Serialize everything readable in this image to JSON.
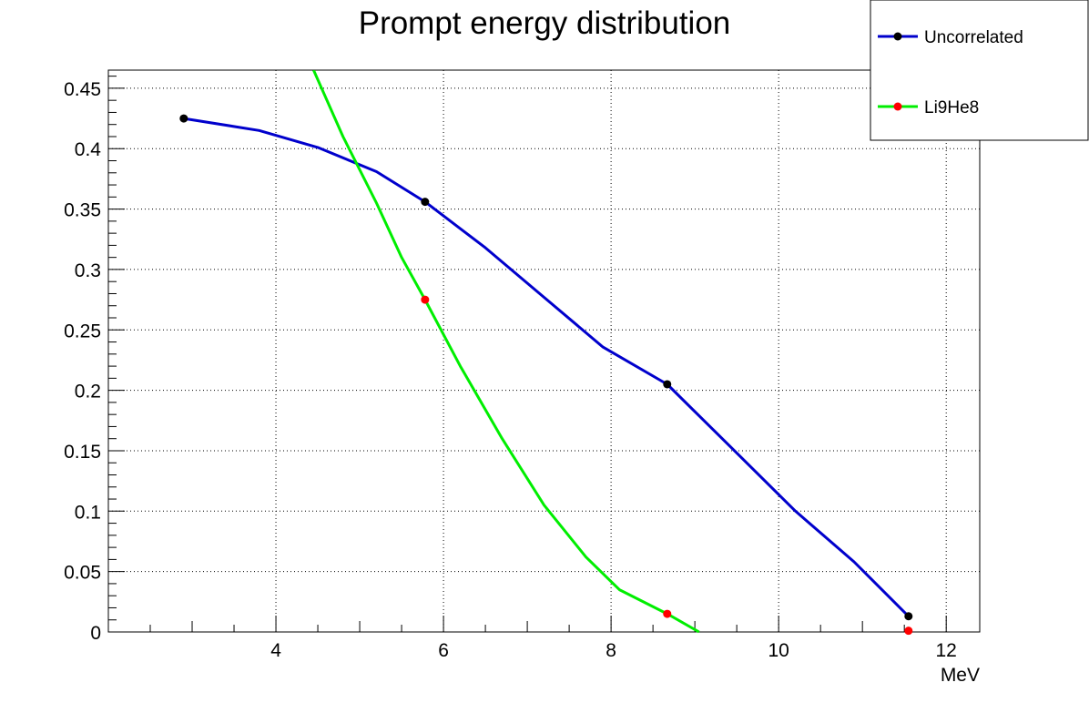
{
  "chart_data": {
    "type": "line",
    "title": "Prompt energy distribution",
    "xlabel": "MeV",
    "ylabel": "",
    "xlim": [
      2.0,
      12.4
    ],
    "ylim": [
      0,
      0.465
    ],
    "x_major_ticks": [
      4,
      6,
      8,
      10,
      12
    ],
    "x_tick_labels": [
      "4",
      "6",
      "8",
      "10",
      "12"
    ],
    "y_major_ticks": [
      0,
      0.05,
      0.1,
      0.15,
      0.2,
      0.25,
      0.3,
      0.35,
      0.4,
      0.45
    ],
    "y_tick_labels": [
      "0",
      "0.05",
      "0.1",
      "0.15",
      "0.2",
      "0.25",
      "0.3",
      "0.35",
      "0.4",
      "0.45"
    ],
    "grid": true,
    "legend_position": "top-right",
    "series": [
      {
        "name": "Uncorrelated",
        "color": "#0000cc",
        "marker_color": "#000000",
        "points": [
          [
            2.9,
            0.425
          ],
          [
            5.78,
            0.356
          ],
          [
            8.67,
            0.205
          ],
          [
            11.55,
            0.013
          ]
        ],
        "curve": [
          [
            2.9,
            0.425
          ],
          [
            3.8,
            0.415
          ],
          [
            4.5,
            0.401
          ],
          [
            5.2,
            0.381
          ],
          [
            5.78,
            0.356
          ],
          [
            6.5,
            0.318
          ],
          [
            7.2,
            0.277
          ],
          [
            7.9,
            0.236
          ],
          [
            8.67,
            0.205
          ],
          [
            9.4,
            0.155
          ],
          [
            10.2,
            0.1
          ],
          [
            10.9,
            0.058
          ],
          [
            11.55,
            0.013
          ]
        ]
      },
      {
        "name": "Li9He8",
        "color": "#00ee00",
        "marker_color": "#ff0000",
        "points": [
          [
            5.78,
            0.275
          ],
          [
            8.67,
            0.015
          ],
          [
            11.55,
            0.001
          ]
        ],
        "curve": [
          [
            4.45,
            0.465
          ],
          [
            4.8,
            0.41
          ],
          [
            5.2,
            0.355
          ],
          [
            5.5,
            0.31
          ],
          [
            5.78,
            0.275
          ],
          [
            6.2,
            0.22
          ],
          [
            6.7,
            0.16
          ],
          [
            7.2,
            0.105
          ],
          [
            7.7,
            0.062
          ],
          [
            8.1,
            0.035
          ],
          [
            8.67,
            0.015
          ],
          [
            9.05,
            0.0
          ]
        ]
      }
    ]
  }
}
